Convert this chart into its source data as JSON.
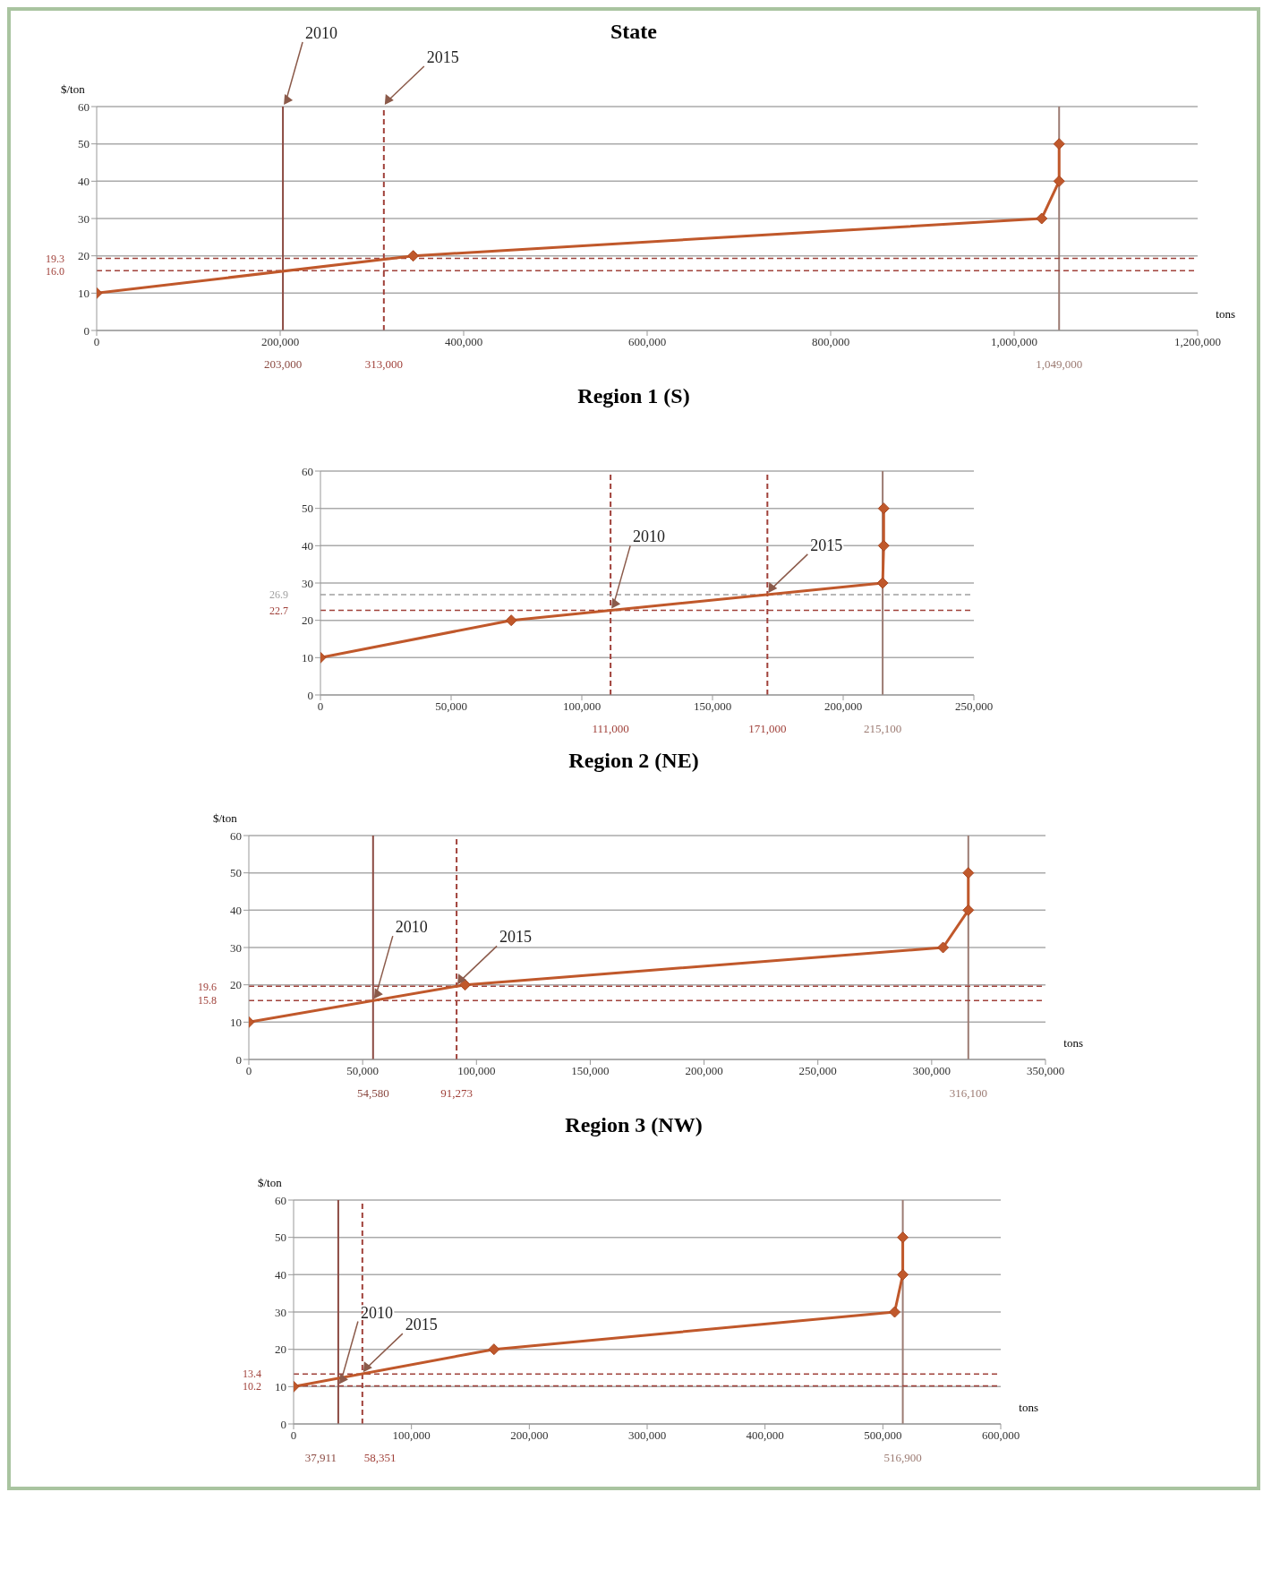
{
  "chart_data": [
    {
      "type": "line",
      "title": "State",
      "xlabel": "tons",
      "ylabel": "$/ton",
      "x": [
        0,
        345000,
        1030000,
        1049000,
        1049000
      ],
      "series": [
        {
          "color": "#c0582b",
          "values": [
            10,
            20,
            30,
            40,
            50
          ]
        }
      ],
      "xlim": [
        0,
        1200000
      ],
      "xticks": [
        {
          "value": 0,
          "label": "0"
        },
        {
          "value": 200000,
          "label": "200,000"
        },
        {
          "value": 400000,
          "label": "400,000"
        },
        {
          "value": 600000,
          "label": "600,000"
        },
        {
          "value": 800000,
          "label": "800,000"
        },
        {
          "value": 1000000,
          "label": "1,000,000"
        },
        {
          "value": 1200000,
          "label": "1,200,000"
        }
      ],
      "ylim": [
        0,
        60
      ],
      "yticks": [
        0,
        10,
        20,
        30,
        40,
        50,
        60
      ],
      "grid": "y",
      "marker": "diamond",
      "line_style": "solid",
      "ref_lines": [
        {
          "axis": "x",
          "value": 203000,
          "label": "203,000",
          "color": "#8b4a42",
          "line_style": "solid"
        },
        {
          "axis": "x",
          "value": 313000,
          "label": "313,000",
          "color": "#a0413a",
          "line_style": "dashed"
        },
        {
          "axis": "x",
          "value": 1049000,
          "label": "1,049,000",
          "color": "#9c7b73",
          "line_style": "solid"
        },
        {
          "axis": "y",
          "value": 16.0,
          "label": "16.0",
          "color": "#a0413a",
          "line_style": "dashed"
        },
        {
          "axis": "y",
          "value": 19.3,
          "label": "19.3",
          "color": "#a0413a",
          "line_style": "dashed"
        }
      ],
      "annotations": [
        {
          "text": "2010",
          "x": 203000,
          "y": 60
        },
        {
          "text": "2015",
          "x": 313000,
          "y": 60
        }
      ]
    },
    {
      "type": "line",
      "title": "Region 1 (S)",
      "x": [
        0,
        73000,
        215100,
        215500,
        215500
      ],
      "series": [
        {
          "color": "#c0582b",
          "values": [
            10,
            20,
            30,
            40,
            50
          ]
        }
      ],
      "xlim": [
        0,
        250000
      ],
      "xticks": [
        {
          "value": 0,
          "label": "0"
        },
        {
          "value": 50000,
          "label": "50,000"
        },
        {
          "value": 100000,
          "label": "100,000"
        },
        {
          "value": 150000,
          "label": "150,000"
        },
        {
          "value": 200000,
          "label": "200,000"
        },
        {
          "value": 250000,
          "label": "250,000"
        }
      ],
      "ylim": [
        0,
        60
      ],
      "yticks": [
        0,
        10,
        20,
        30,
        40,
        50,
        60
      ],
      "grid": "y",
      "marker": "diamond",
      "line_style": "solid",
      "ref_lines": [
        {
          "axis": "x",
          "value": 111000,
          "label": "111,000",
          "color": "#a0413a",
          "line_style": "dashed"
        },
        {
          "axis": "x",
          "value": 171000,
          "label": "171,000",
          "color": "#a0413a",
          "line_style": "dashed"
        },
        {
          "axis": "x",
          "value": 215100,
          "label": "215,100",
          "color": "#9c7b73",
          "line_style": "solid"
        },
        {
          "axis": "y",
          "value": 22.7,
          "label": "22.7",
          "color": "#a0413a",
          "line_style": "dashed"
        },
        {
          "axis": "y",
          "value": 26.9,
          "label": "26.9",
          "color": "#a0a0a0",
          "line_style": "dashed"
        }
      ],
      "annotations": [
        {
          "text": "2010",
          "x": 111000,
          "y": 22.7
        },
        {
          "text": "2015",
          "x": 171000,
          "y": 26.9
        }
      ]
    },
    {
      "type": "line",
      "title": "Region 2 (NE)",
      "xlabel": "tons",
      "ylabel": "$/ton",
      "x": [
        0,
        95000,
        305000,
        316100,
        316100
      ],
      "series": [
        {
          "color": "#c0582b",
          "values": [
            10,
            20,
            30,
            40,
            50
          ]
        }
      ],
      "xlim": [
        0,
        350000
      ],
      "xticks": [
        {
          "value": 0,
          "label": "0"
        },
        {
          "value": 50000,
          "label": "50,000"
        },
        {
          "value": 100000,
          "label": "100,000"
        },
        {
          "value": 150000,
          "label": "150,000"
        },
        {
          "value": 200000,
          "label": "200,000"
        },
        {
          "value": 250000,
          "label": "250,000"
        },
        {
          "value": 300000,
          "label": "300,000"
        },
        {
          "value": 350000,
          "label": "350,000"
        }
      ],
      "ylim": [
        0,
        60
      ],
      "yticks": [
        0,
        10,
        20,
        30,
        40,
        50,
        60
      ],
      "grid": "y",
      "marker": "diamond",
      "line_style": "solid",
      "ref_lines": [
        {
          "axis": "x",
          "value": 54580,
          "label": "54,580",
          "color": "#8b4a42",
          "line_style": "solid"
        },
        {
          "axis": "x",
          "value": 91273,
          "label": "91,273",
          "color": "#a0413a",
          "line_style": "dashed"
        },
        {
          "axis": "x",
          "value": 316100,
          "label": "316,100",
          "color": "#9c7b73",
          "line_style": "solid"
        },
        {
          "axis": "y",
          "value": 15.8,
          "label": "15.8",
          "color": "#a0413a",
          "line_style": "dashed"
        },
        {
          "axis": "y",
          "value": 19.6,
          "label": "19.6",
          "color": "#a0413a",
          "line_style": "dashed"
        }
      ],
      "annotations": [
        {
          "text": "2010",
          "x": 54580,
          "y": 15.8
        },
        {
          "text": "2015",
          "x": 91273,
          "y": 19.6
        }
      ]
    },
    {
      "type": "line",
      "title": "Region 3 (NW)",
      "xlabel": "tons",
      "ylabel": "$/ton",
      "x": [
        0,
        170000,
        510000,
        516900,
        516900
      ],
      "series": [
        {
          "color": "#c0582b",
          "values": [
            10,
            20,
            30,
            40,
            50
          ]
        }
      ],
      "xlim": [
        0,
        600000
      ],
      "xticks": [
        {
          "value": 0,
          "label": "0"
        },
        {
          "value": 100000,
          "label": "100,000"
        },
        {
          "value": 200000,
          "label": "200,000"
        },
        {
          "value": 300000,
          "label": "300,000"
        },
        {
          "value": 400000,
          "label": "400,000"
        },
        {
          "value": 500000,
          "label": "500,000"
        },
        {
          "value": 600000,
          "label": "600,000"
        }
      ],
      "ylim": [
        0,
        60
      ],
      "yticks": [
        0,
        10,
        20,
        30,
        40,
        50,
        60
      ],
      "grid": "y",
      "marker": "diamond",
      "line_style": "solid",
      "ref_lines": [
        {
          "axis": "x",
          "value": 37911,
          "label": "37,911",
          "color": "#8b4a42",
          "line_style": "solid"
        },
        {
          "axis": "x",
          "value": 58351,
          "label": "58,351",
          "color": "#a0413a",
          "line_style": "dashed"
        },
        {
          "axis": "x",
          "value": 516900,
          "label": "516,900",
          "color": "#9c7b73",
          "line_style": "solid"
        },
        {
          "axis": "y",
          "value": 10.2,
          "label": "10.2",
          "color": "#a0413a",
          "line_style": "dashed"
        },
        {
          "axis": "y",
          "value": 13.4,
          "label": "13.4",
          "color": "#a0413a",
          "line_style": "dashed"
        }
      ],
      "annotations": [
        {
          "text": "2010",
          "x": 37911,
          "y": 10.2
        },
        {
          "text": "2015",
          "x": 58351,
          "y": 13.4
        }
      ]
    }
  ]
}
